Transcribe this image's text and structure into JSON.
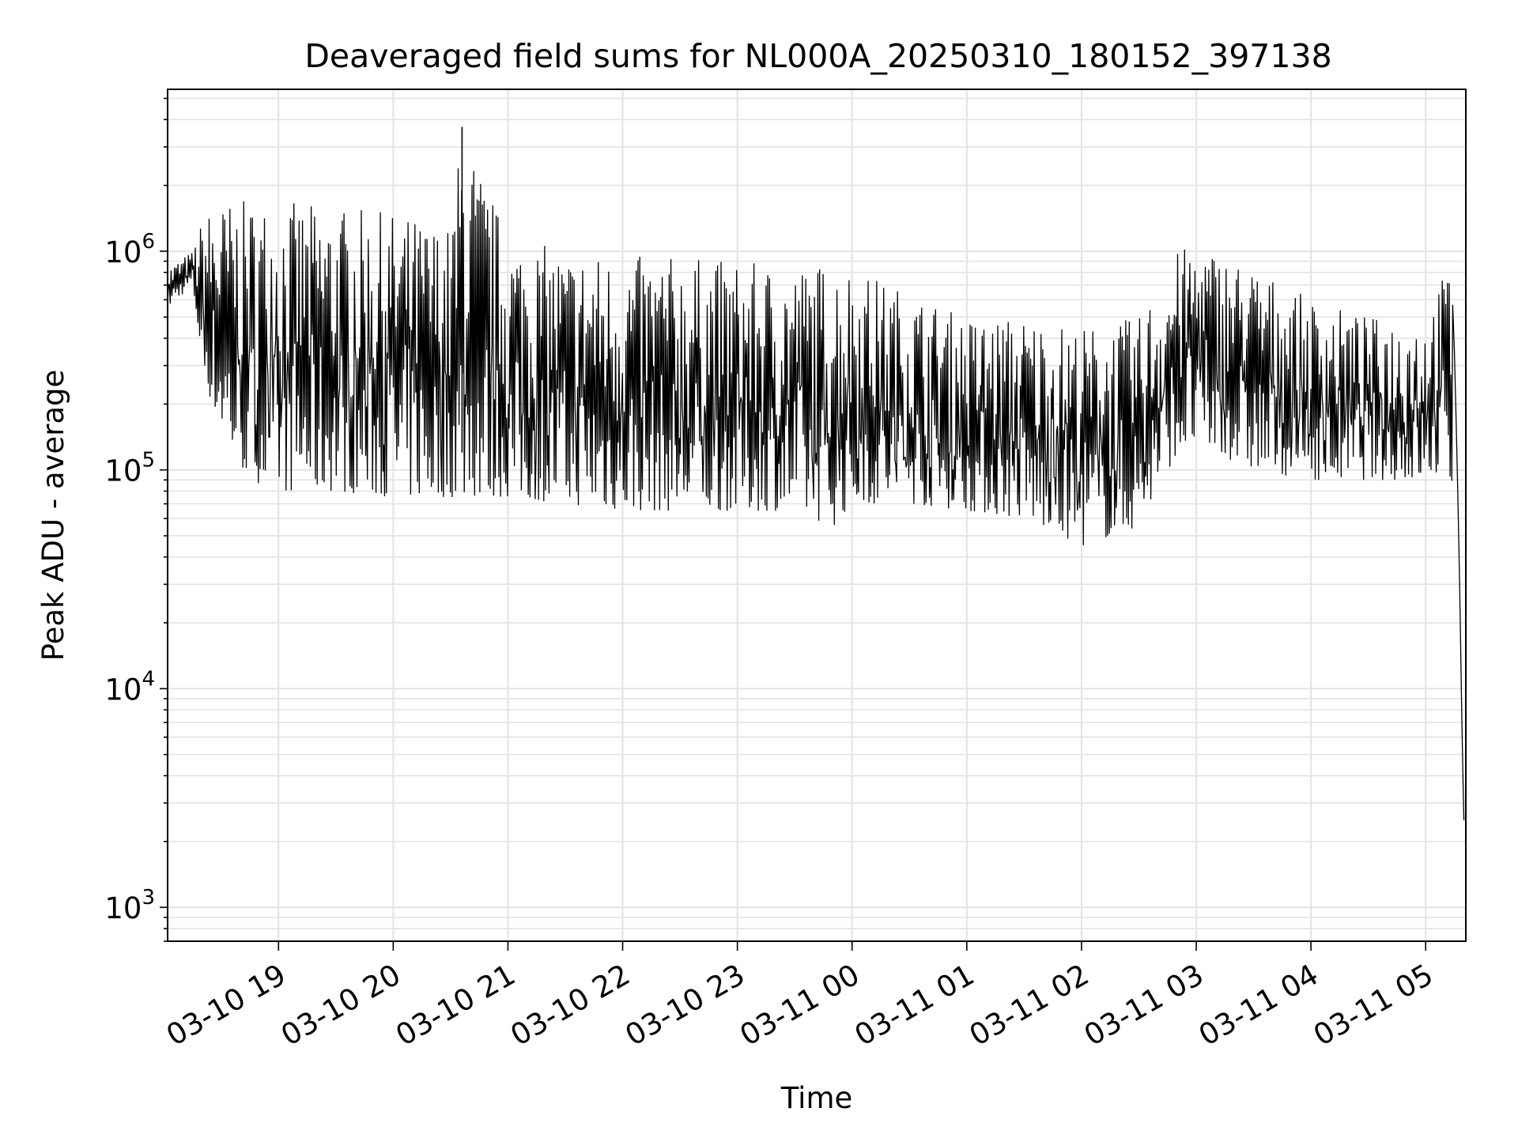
{
  "chart_data": {
    "type": "line",
    "title": "Deaveraged field sums for NL000A_20250310_180152_397138",
    "xlabel": "Time",
    "ylabel": "Peak ADU - average",
    "yscale": "log",
    "ylim": [
      700,
      5500000
    ],
    "xlim": [
      "2025-03-10 18:02",
      "2025-03-11 05:21"
    ],
    "grid": true,
    "x_tick_labels": [
      "03-10 19",
      "03-10 20",
      "03-10 21",
      "03-10 22",
      "03-10 23",
      "03-11 00",
      "03-11 01",
      "03-11 02",
      "03-11 03",
      "03-11 04",
      "03-11 05"
    ],
    "y_tick_labels": [
      {
        "base": "10",
        "exp": "3"
      },
      {
        "base": "10",
        "exp": "4"
      },
      {
        "base": "10",
        "exp": "5"
      },
      {
        "base": "10",
        "exp": "6"
      }
    ],
    "series": [
      {
        "color": "#000000",
        "x": [
          "2025-03-10 18:02",
          "2025-03-10 18:15",
          "2025-03-10 18:20",
          "2025-03-10 18:25",
          "2025-03-10 18:35",
          "2025-03-10 18:45",
          "2025-03-10 19:00",
          "2025-03-10 19:30",
          "2025-03-10 20:00",
          "2025-03-10 20:30",
          "2025-03-10 20:36",
          "2025-03-10 21:00",
          "2025-03-10 21:30",
          "2025-03-10 22:00",
          "2025-03-10 22:30",
          "2025-03-10 23:00",
          "2025-03-10 23:30",
          "2025-03-10 23:50",
          "2025-03-11 00:00",
          "2025-03-11 00:30",
          "2025-03-11 01:00",
          "2025-03-11 01:30",
          "2025-03-11 02:00",
          "2025-03-11 02:30",
          "2025-03-11 02:50",
          "2025-03-11 03:00",
          "2025-03-11 03:30",
          "2025-03-11 04:00",
          "2025-03-11 04:30",
          "2025-03-11 05:00",
          "2025-03-11 05:12",
          "2025-03-11 05:15",
          "2025-03-11 05:18",
          "2025-03-11 05:20"
        ],
        "y_low": [
          550000,
          700000,
          300000,
          200000,
          120000,
          90000,
          80000,
          80000,
          75000,
          75000,
          75000,
          75000,
          70000,
          65000,
          65000,
          65000,
          65000,
          55000,
          70000,
          70000,
          65000,
          60000,
          45000,
          55000,
          120000,
          130000,
          100000,
          90000,
          90000,
          90000,
          100000,
          60000,
          8000,
          2500
        ],
        "y_high": [
          850000,
          1000000,
          1400000,
          1600000,
          1700000,
          1700000,
          1700000,
          1600000,
          1500000,
          1300000,
          3700000,
          1200000,
          1000000,
          950000,
          950000,
          900000,
          850000,
          900000,
          850000,
          650000,
          500000,
          500000,
          450000,
          500000,
          1000000,
          1100000,
          850000,
          600000,
          500000,
          500000,
          900000,
          500000,
          200000,
          12000
        ]
      }
    ]
  }
}
